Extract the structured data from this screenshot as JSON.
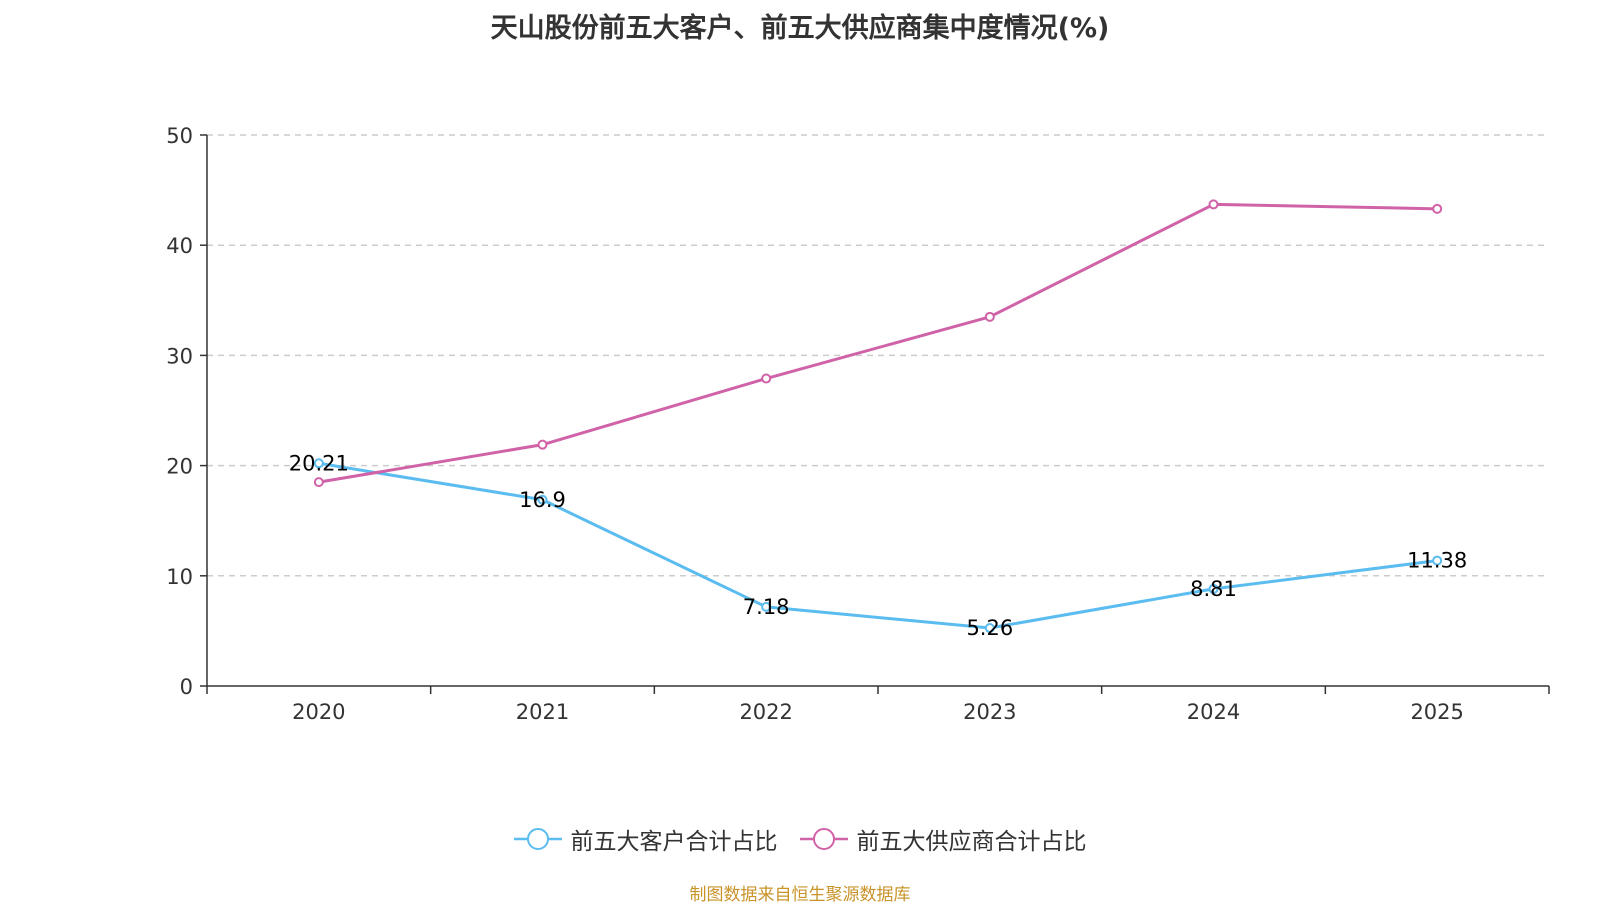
{
  "chart_data": {
    "type": "line",
    "title": "天山股份前五大客户、前五大供应商集中度情况(%)",
    "categories": [
      "2020",
      "2021",
      "2022",
      "2023",
      "2024",
      "2025"
    ],
    "ylim": [
      0,
      50
    ],
    "yticks": [
      0,
      10,
      20,
      30,
      40,
      50
    ],
    "grid": true,
    "legend_position": "bottom-center",
    "series": [
      {
        "name": "前五大客户合计占比",
        "color": "#5bbcf0",
        "values": [
          20.21,
          16.9,
          7.18,
          5.26,
          8.81,
          11.38
        ],
        "labels": [
          "20.21",
          "16.9",
          "7.18",
          "5.26",
          "8.81",
          "11.38"
        ],
        "show_labels": true
      },
      {
        "name": "前五大供应商合计占比",
        "color": "#d063a8",
        "values": [
          18.5,
          21.9,
          27.9,
          33.5,
          43.7,
          43.3
        ],
        "show_labels": false
      }
    ]
  },
  "source": "制图数据来自恒生聚源数据库"
}
